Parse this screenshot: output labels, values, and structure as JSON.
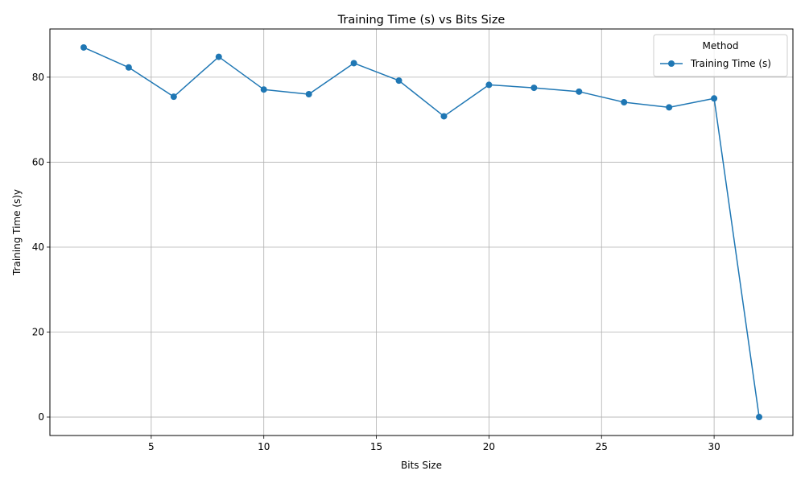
{
  "chart_data": {
    "type": "line",
    "title": "Training Time (s) vs Bits Size",
    "xlabel": "Bits Size",
    "ylabel": "Training Time (s)y",
    "xlim": [
      0.5,
      33.5
    ],
    "ylim": [
      -4.35,
      91.35
    ],
    "xticks": [
      5,
      10,
      15,
      20,
      25,
      30
    ],
    "yticks": [
      0,
      20,
      40,
      60,
      80
    ],
    "grid": true,
    "legend": {
      "title": "Method",
      "placement": "top-right"
    },
    "colors": {
      "series": "#1f77b4",
      "grid": "#b0b0b0",
      "axes": "#000000"
    },
    "x": [
      2,
      4,
      6,
      8,
      10,
      12,
      14,
      16,
      18,
      20,
      22,
      24,
      26,
      28,
      30,
      32
    ],
    "series": [
      {
        "name": "Training Time (s)",
        "values": [
          87.0,
          82.3,
          75.4,
          84.8,
          77.1,
          76.0,
          83.3,
          79.2,
          70.8,
          78.2,
          77.5,
          76.6,
          74.1,
          72.9,
          75.0,
          0.0
        ]
      }
    ]
  }
}
